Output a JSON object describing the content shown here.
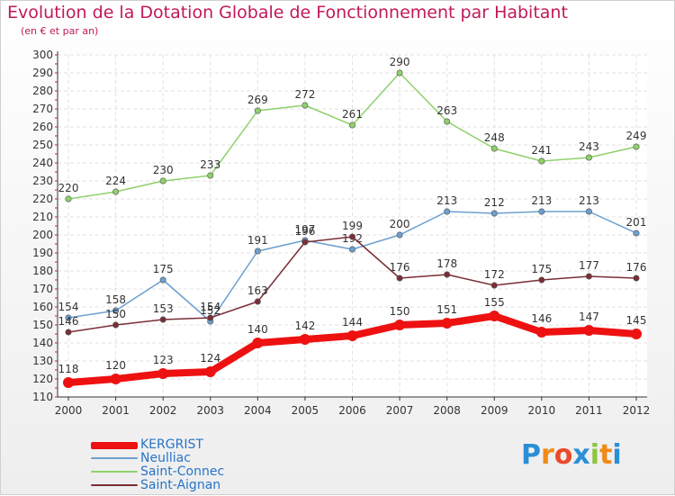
{
  "title": "Evolution de la Dotation Globale de Fonctionnement par Habitant",
  "subtitle": "(en € et par an)",
  "logo": {
    "letters": [
      "P",
      "r",
      "o",
      "x",
      "i",
      "t",
      "i"
    ],
    "colors": [
      "#2a8fd6",
      "#f08a18",
      "#e84a2a",
      "#2a8fd6",
      "#8cc63f",
      "#f08a18",
      "#2a8fd6"
    ]
  },
  "chart_data": {
    "type": "line",
    "x": [
      "2000",
      "2001",
      "2002",
      "2003",
      "2004",
      "2005",
      "2006",
      "2007",
      "2008",
      "2009",
      "2010",
      "2011",
      "2012"
    ],
    "ylim": [
      110,
      300
    ],
    "yticks": [
      "110",
      "120",
      "130",
      "140",
      "150",
      "160",
      "170",
      "180",
      "190",
      "200",
      "210",
      "220",
      "230",
      "240",
      "250",
      "260",
      "270",
      "280",
      "290",
      "300"
    ],
    "grid": true,
    "legend_position": "bottom-left",
    "series": [
      {
        "name": "Saint-Connec",
        "color": "#8ed16a",
        "values": [
          220,
          224,
          230,
          233,
          269,
          272,
          261,
          290,
          263,
          248,
          241,
          243,
          249
        ]
      },
      {
        "name": "Neulliac",
        "color": "#6d9fcf",
        "values": [
          154,
          158,
          175,
          152,
          191,
          197,
          192,
          200,
          213,
          212,
          213,
          213,
          201
        ]
      },
      {
        "name": "Saint-Aignan",
        "color": "#7a2e36",
        "values": [
          146,
          150,
          153,
          154,
          163,
          196,
          199,
          176,
          178,
          172,
          175,
          177,
          176
        ]
      },
      {
        "name": "KERGRIST",
        "color": "#ee1111",
        "values": [
          118,
          120,
          123,
          124,
          140,
          142,
          144,
          150,
          151,
          155,
          146,
          147,
          145
        ]
      }
    ],
    "legend": [
      "KERGRIST",
      "Neulliac",
      "Saint-Connec",
      "Saint-Aignan"
    ]
  }
}
